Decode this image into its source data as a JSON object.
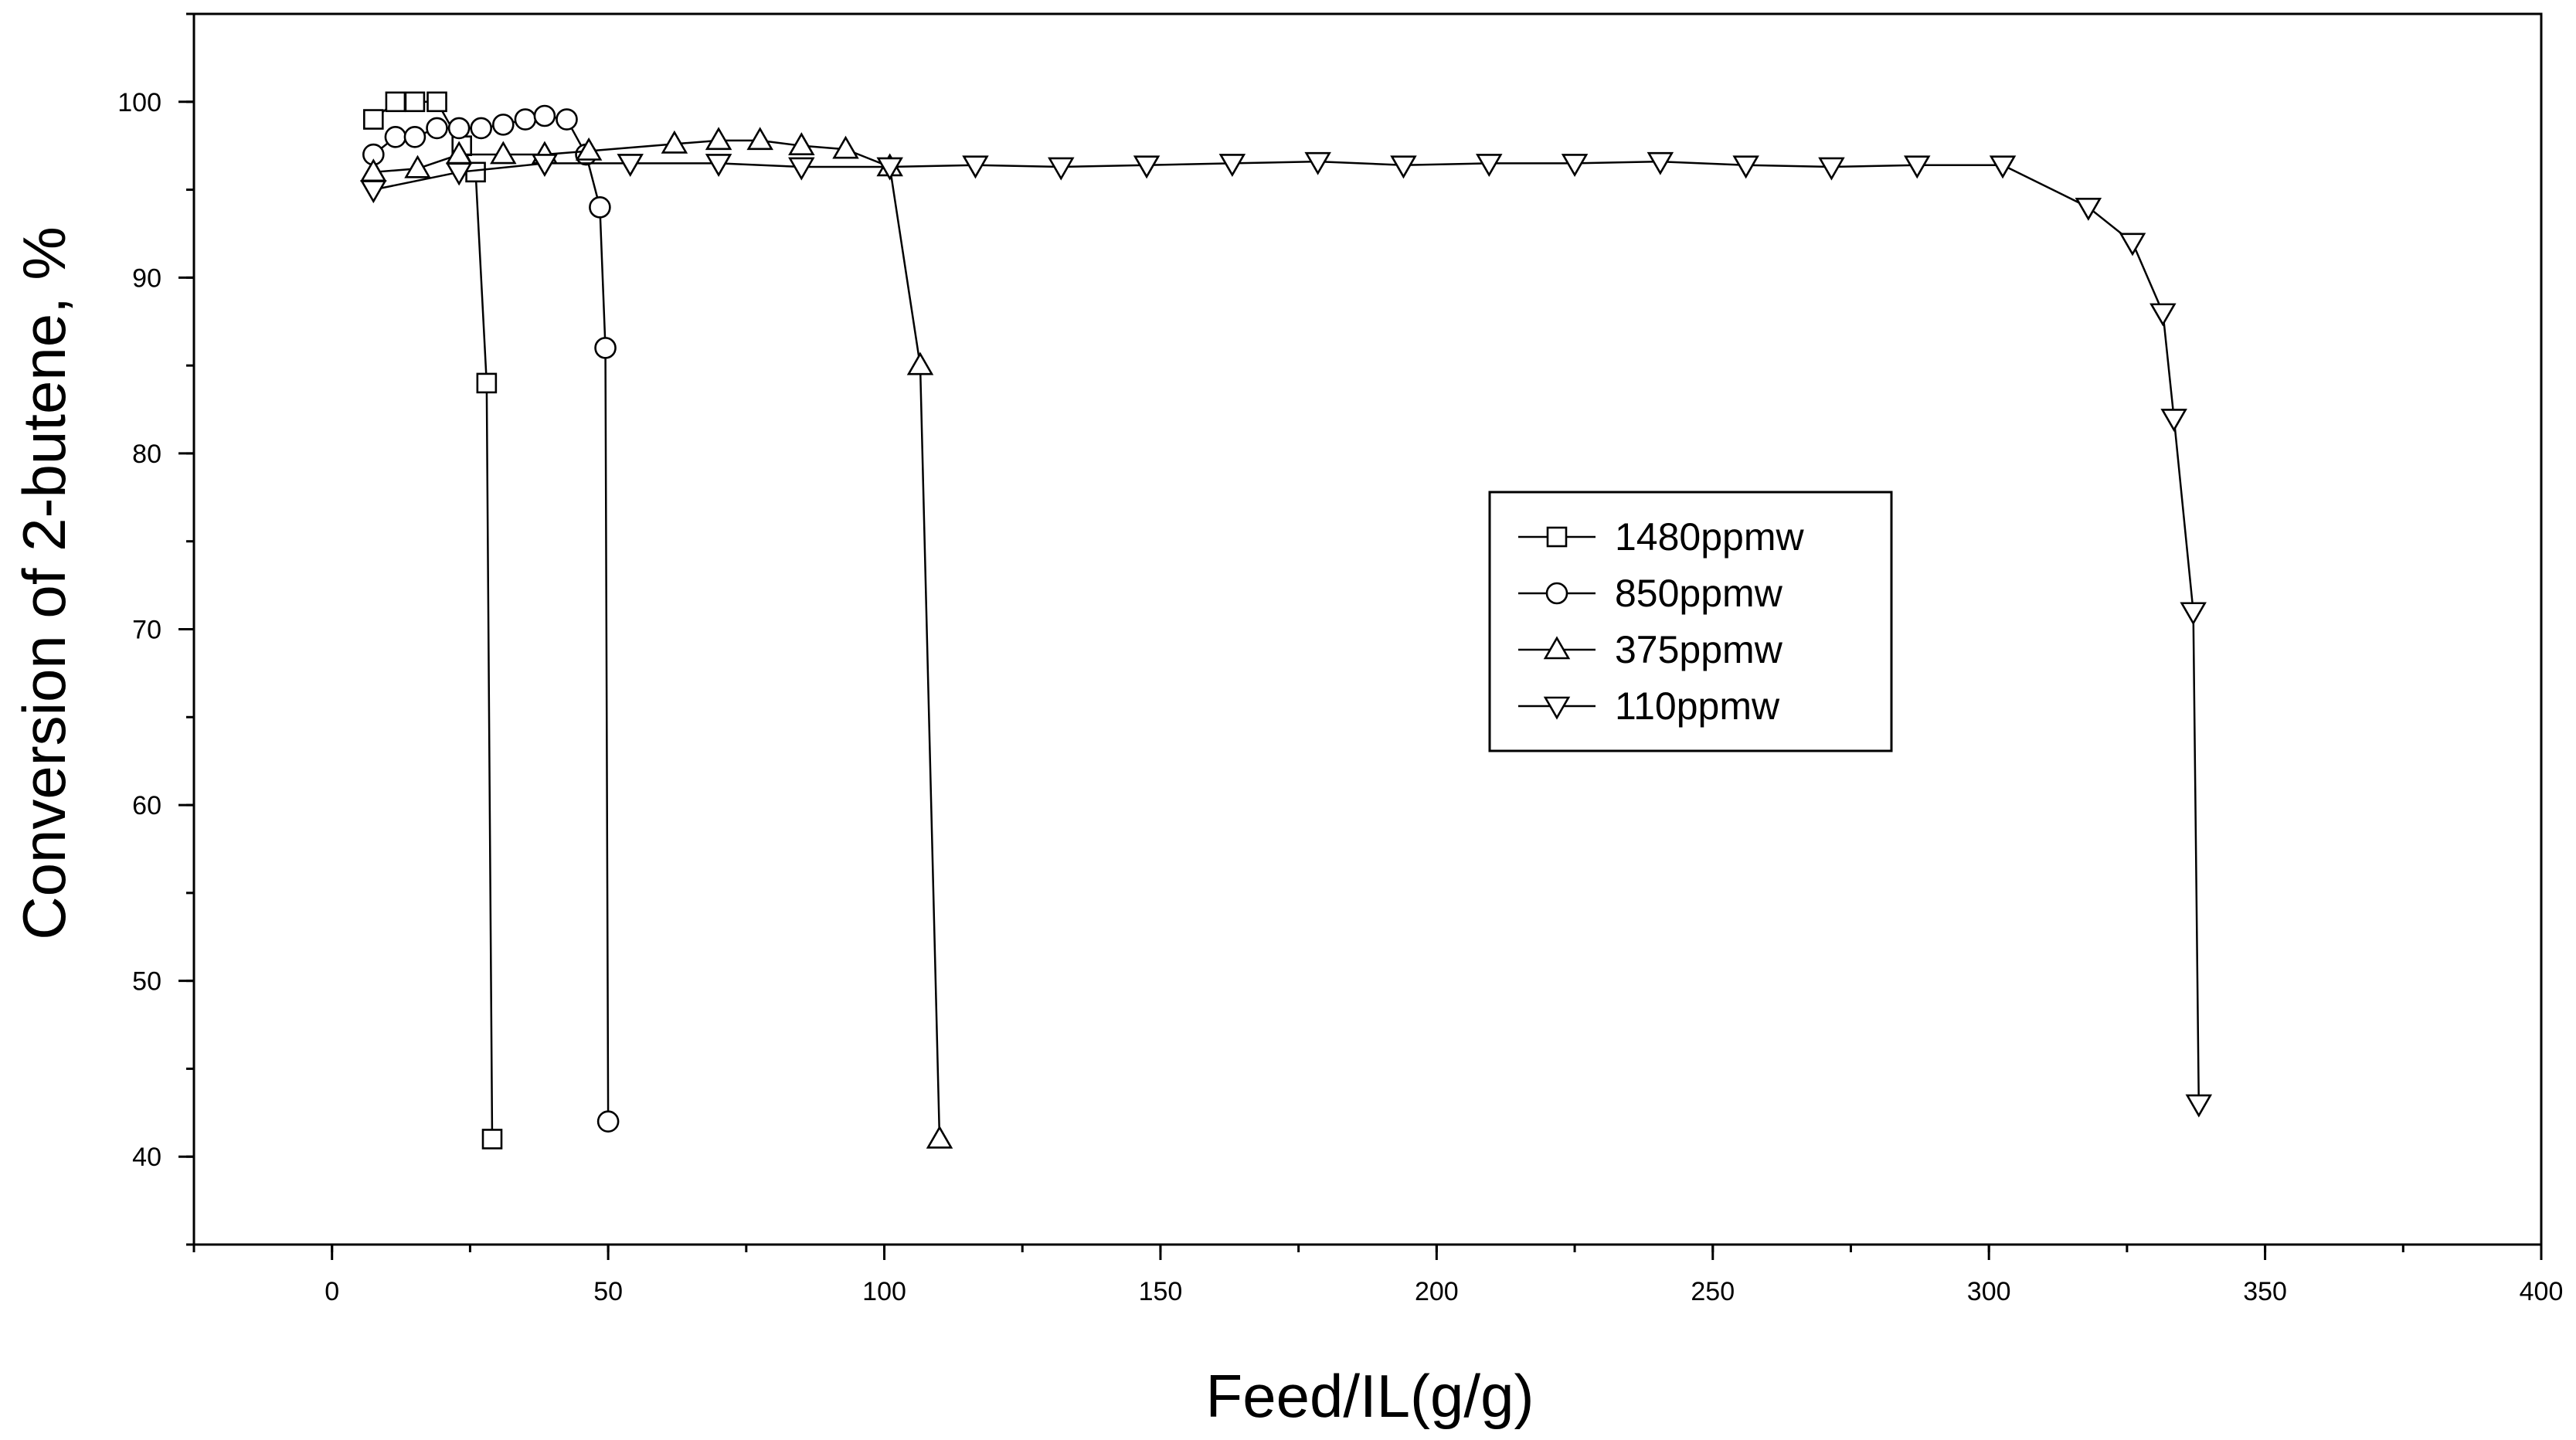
{
  "chart_data": {
    "type": "line",
    "title": "",
    "xlabel": "Feed/IL(g/g)",
    "ylabel": "Conversion of 2-butene, %",
    "xlim": [
      -25,
      400
    ],
    "ylim": [
      35,
      105
    ],
    "xticks": [
      0,
      50,
      100,
      150,
      200,
      250,
      300,
      350,
      400
    ],
    "yticks": [
      40,
      50,
      60,
      70,
      80,
      90,
      100
    ],
    "x_minor_step": 25,
    "y_minor_step": 5,
    "grid": false,
    "legend_position": "center-right",
    "series": [
      {
        "name": "1480ppmw",
        "marker": "square",
        "x": [
          7.5,
          11.5,
          15,
          19,
          23.5,
          26,
          28,
          29
        ],
        "y": [
          99,
          100,
          100,
          100,
          97.5,
          96,
          84,
          41
        ]
      },
      {
        "name": "850ppmw",
        "marker": "circle",
        "x": [
          7.5,
          11.5,
          15,
          19,
          23,
          27,
          31,
          35,
          38.5,
          42.5,
          46,
          48.5,
          49.5,
          50
        ],
        "y": [
          97,
          98,
          98,
          98.5,
          98.5,
          98.5,
          98.7,
          99,
          99.2,
          99,
          97,
          94,
          86,
          42
        ]
      },
      {
        "name": "375ppmw",
        "marker": "triangle-up",
        "x": [
          7.5,
          15.5,
          23,
          31,
          38.5,
          46.5,
          62,
          70,
          77.5,
          85,
          93,
          101,
          106.5,
          110
        ],
        "y": [
          96,
          96.2,
          97,
          97,
          97,
          97.2,
          97.6,
          97.8,
          97.8,
          97.5,
          97.3,
          96.3,
          85,
          41
        ]
      },
      {
        "name": "110ppmw",
        "marker": "triangle-down",
        "x": [
          7.5,
          23,
          38.5,
          54,
          70,
          85,
          101,
          116.5,
          132,
          147.5,
          163,
          178.5,
          194,
          209.5,
          225,
          240.5,
          256,
          271.5,
          287,
          302.5,
          318,
          326,
          331.5,
          333.5,
          337,
          338
        ],
        "y": [
          95,
          96,
          96.5,
          96.5,
          96.5,
          96.3,
          96.3,
          96.4,
          96.3,
          96.4,
          96.5,
          96.6,
          96.4,
          96.5,
          96.5,
          96.6,
          96.4,
          96.3,
          96.4,
          96.4,
          94,
          92,
          88,
          82,
          71,
          43
        ]
      }
    ]
  }
}
